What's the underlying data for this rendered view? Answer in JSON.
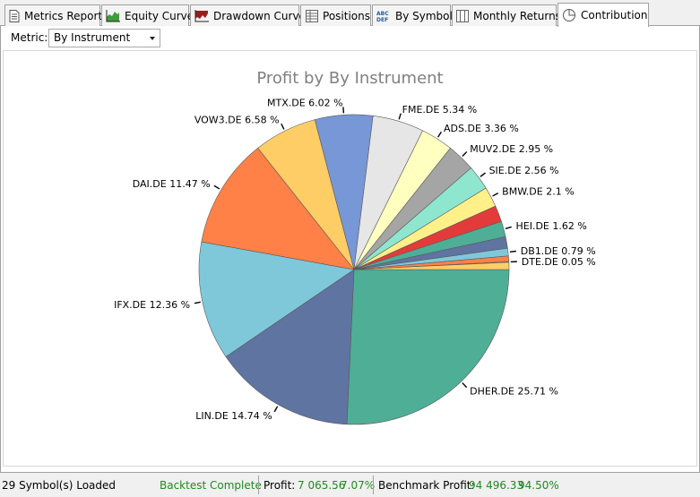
{
  "tabs": [
    {
      "label": "Metrics Report",
      "icon": "document-icon"
    },
    {
      "label": "Equity Curve",
      "icon": "equity-chart-icon"
    },
    {
      "label": "Drawdown Curve",
      "icon": "drawdown-chart-icon"
    },
    {
      "label": "Positions",
      "icon": "grid-icon"
    },
    {
      "label": "By Symbol",
      "icon": "abc-def-icon"
    },
    {
      "label": "Monthly Returns",
      "icon": "columns-icon"
    },
    {
      "label": "Contribution",
      "icon": "pie-chart-icon",
      "active": true
    }
  ],
  "metric": {
    "label": "Metric:",
    "value": "By Instrument"
  },
  "chart_data": {
    "type": "pie",
    "title": "Profit by By Instrument",
    "slices": [
      {
        "label": "DHER.DE 25.71 %",
        "name": "DHER.DE",
        "value": 25.71,
        "color": "#4eae96"
      },
      {
        "label": "LIN.DE 14.74 %",
        "name": "LIN.DE",
        "value": 14.74,
        "color": "#5f74a1"
      },
      {
        "label": "IFX.DE 12.36 %",
        "name": "IFX.DE",
        "value": 12.36,
        "color": "#7fc8da"
      },
      {
        "label": "DAI.DE 11.47 %",
        "name": "DAI.DE",
        "value": 11.47,
        "color": "#ff8147"
      },
      {
        "label": "VOW3.DE 6.58 %",
        "name": "VOW3.DE",
        "value": 6.58,
        "color": "#ffcd66"
      },
      {
        "label": "MTX.DE 6.02 %",
        "name": "MTX.DE",
        "value": 6.02,
        "color": "#7797d6"
      },
      {
        "label": "FME.DE 5.34 %",
        "name": "FME.DE",
        "value": 5.34,
        "color": "#e6e6e6"
      },
      {
        "label": "ADS.DE 3.36 %",
        "name": "ADS.DE",
        "value": 3.36,
        "color": "#ffffc0"
      },
      {
        "label": "MUV2.DE 2.95 %",
        "name": "MUV2.DE",
        "value": 2.95,
        "color": "#a5a5a5"
      },
      {
        "label": "SIE.DE 2.56 %",
        "name": "SIE.DE",
        "value": 2.56,
        "color": "#8fe6cf"
      },
      {
        "label": "BMW.DE 2.1 %",
        "name": "BMW.DE",
        "value": 2.1,
        "color": "#fff08a"
      },
      {
        "label": "",
        "name": "",
        "value": 1.7,
        "color": "#e33b3b"
      },
      {
        "label": "HEI.DE 1.62 %",
        "name": "HEI.DE",
        "value": 1.62,
        "color": "#4eae96"
      },
      {
        "label": "",
        "name": "",
        "value": 1.2,
        "color": "#5f74a1"
      },
      {
        "label": "DB1.DE 0.79 %",
        "name": "DB1.DE",
        "value": 0.79,
        "color": "#7fc8da"
      },
      {
        "label": "",
        "name": "",
        "value": 0.6,
        "color": "#ff8147"
      },
      {
        "label": "DTE.DE 0.05 %",
        "name": "DTE.DE",
        "value": 0.05,
        "color": "#ffcd66"
      },
      {
        "label": "",
        "name": "",
        "value": 0.75,
        "color": "#ffcd66"
      }
    ]
  },
  "status": {
    "symbols": "29 Symbol(s) Loaded",
    "backtest": "Backtest Complete",
    "profit_label": "Profit:",
    "profit_value": "7 065.56",
    "profit_pct": "7.07%",
    "benchmark_label": "Benchmark Profit:",
    "benchmark_value": "94 496.33",
    "benchmark_pct": "94.50%"
  }
}
